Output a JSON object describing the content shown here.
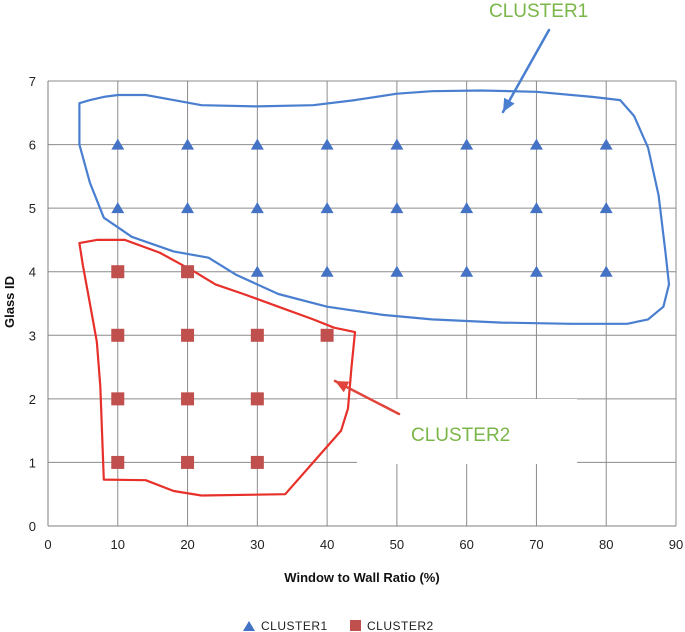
{
  "chart_data": {
    "type": "scatter",
    "title": "",
    "xlabel": "Window to Wall Ratio (%)",
    "ylabel": "Glass ID",
    "xlim": [
      0,
      90
    ],
    "ylim": [
      0,
      7
    ],
    "xticks": [
      "0",
      "10",
      "20",
      "30",
      "40",
      "50",
      "60",
      "70",
      "80",
      "90"
    ],
    "yticks": [
      "0",
      "1",
      "2",
      "3",
      "4",
      "5",
      "6",
      "7"
    ],
    "grid": true,
    "legend_position": "bottom",
    "series": [
      {
        "name": "CLUSTER1",
        "marker": "triangle",
        "color": "#4472C4",
        "points": [
          [
            10,
            6
          ],
          [
            20,
            6
          ],
          [
            30,
            6
          ],
          [
            40,
            6
          ],
          [
            50,
            6
          ],
          [
            60,
            6
          ],
          [
            70,
            6
          ],
          [
            80,
            6
          ],
          [
            10,
            5
          ],
          [
            20,
            5
          ],
          [
            30,
            5
          ],
          [
            40,
            5
          ],
          [
            50,
            5
          ],
          [
            60,
            5
          ],
          [
            70,
            5
          ],
          [
            80,
            5
          ],
          [
            30,
            4
          ],
          [
            40,
            4
          ],
          [
            50,
            4
          ],
          [
            60,
            4
          ],
          [
            70,
            4
          ],
          [
            80,
            4
          ]
        ]
      },
      {
        "name": "CLUSTER2",
        "marker": "square",
        "color": "#C0504D",
        "points": [
          [
            10,
            4
          ],
          [
            20,
            4
          ],
          [
            10,
            3
          ],
          [
            20,
            3
          ],
          [
            30,
            3
          ],
          [
            40,
            3
          ],
          [
            10,
            2
          ],
          [
            20,
            2
          ],
          [
            30,
            2
          ],
          [
            10,
            1
          ],
          [
            20,
            1
          ],
          [
            30,
            1
          ]
        ]
      }
    ],
    "annotations": [
      {
        "text": "CLUSTER1",
        "color": "#7AB648",
        "outline_color": "#4A7FD0",
        "arrow_color": "#4A7FD0"
      },
      {
        "text": "CLUSTER2",
        "color": "#7AB648",
        "outline_color": "#E8302A",
        "arrow_color": "#E0443A"
      }
    ]
  }
}
